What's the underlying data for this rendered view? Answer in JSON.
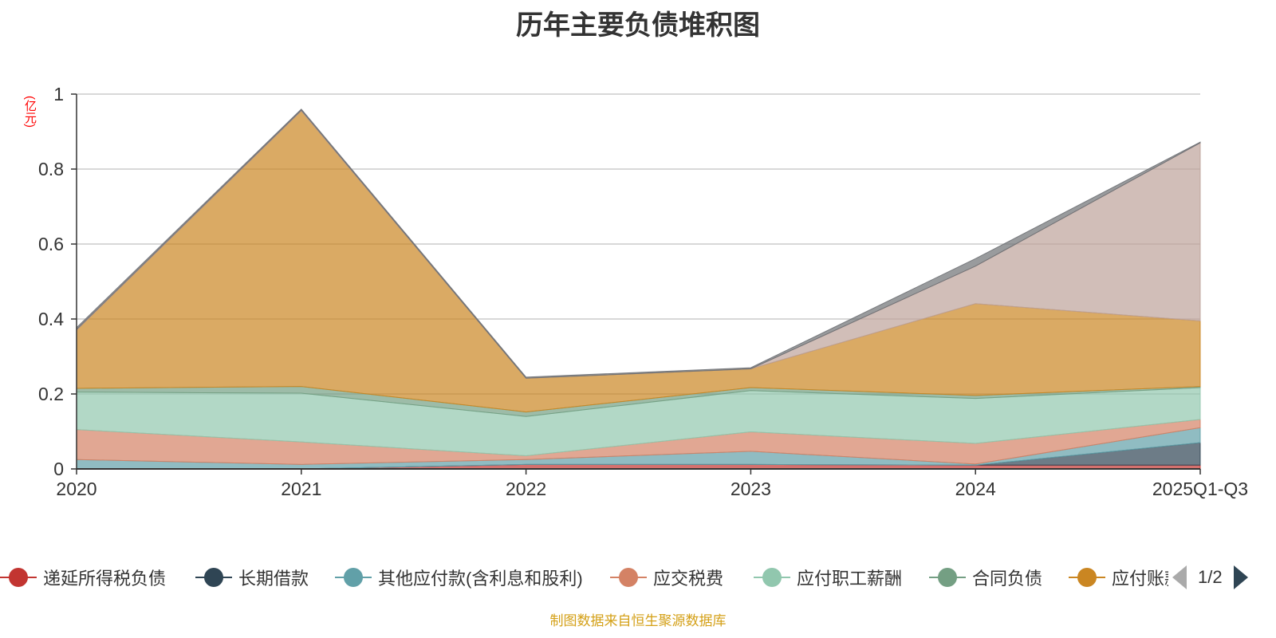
{
  "chart_data": {
    "type": "area",
    "title": "历年主要负债堆积图",
    "ylabel": "(亿元)",
    "xlabel": "",
    "ylim": [
      0,
      1
    ],
    "yticks": [
      "0",
      "0.2",
      "0.4",
      "0.6",
      "0.8",
      "1"
    ],
    "categories": [
      "2020",
      "2021",
      "2022",
      "2023",
      "2024",
      "2025Q1-Q3"
    ],
    "stacked": true,
    "grid": true,
    "legend_position": "bottom",
    "series": [
      {
        "name": "递延所得税负债",
        "color": "#c23531",
        "values": [
          0.0,
          0.0,
          0.012,
          0.012,
          0.01,
          0.01
        ]
      },
      {
        "name": "长期借款",
        "color": "#2f4554",
        "values": [
          0.0,
          0.0,
          0.0,
          0.0,
          0.0,
          0.06
        ]
      },
      {
        "name": "其他应付款(含利息和股利)",
        "color": "#61a0a8",
        "values": [
          0.025,
          0.012,
          0.013,
          0.035,
          0.003,
          0.04
        ]
      },
      {
        "name": "应交税费",
        "color": "#d48265",
        "values": [
          0.08,
          0.06,
          0.01,
          0.052,
          0.055,
          0.022
        ]
      },
      {
        "name": "应付职工薪酬",
        "color": "#91c7ae",
        "values": [
          0.1,
          0.13,
          0.105,
          0.11,
          0.12,
          0.085
        ]
      },
      {
        "name": "合同负债",
        "color": "#749f83",
        "values": [
          0.01,
          0.018,
          0.012,
          0.008,
          0.008,
          0.003
        ]
      },
      {
        "name": "应付账款",
        "color": "#ca8622",
        "values": [
          0.155,
          0.735,
          0.09,
          0.05,
          0.245,
          0.175
        ]
      },
      {
        "name": "",
        "color": "#bda29a",
        "values": [
          0.002,
          0.002,
          0.0,
          0.0,
          0.1,
          0.475
        ]
      },
      {
        "name": "",
        "color": "#6e7074",
        "values": [
          0.005,
          0.003,
          0.003,
          0.003,
          0.02,
          0.002
        ]
      }
    ]
  },
  "legend": {
    "items": [
      "递延所得税负债",
      "长期借款",
      "其他应付款(含利息和股利)",
      "应交税费",
      "应付职工薪酬",
      "合同负债",
      "应付账款"
    ],
    "page": "1/2"
  },
  "source": "制图数据来自恒生聚源数据库"
}
